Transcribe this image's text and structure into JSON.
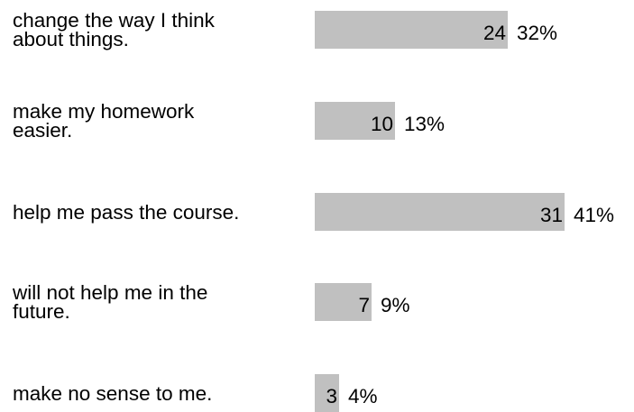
{
  "chart_data": {
    "type": "bar",
    "orientation": "horizontal",
    "categories": [
      "change the way I think\nabout things.",
      "make my homework\neasier.",
      "help me pass the course.",
      "will not help me in the\nfuture.",
      "make no sense to me."
    ],
    "values": [
      24,
      10,
      31,
      7,
      3
    ],
    "percent_labels": [
      "32%",
      "13%",
      "41%",
      "9%",
      "4%"
    ],
    "bar_color": "#c0c0c0",
    "grid": false
  }
}
